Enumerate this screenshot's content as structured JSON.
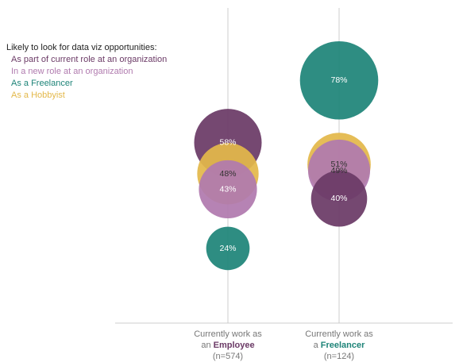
{
  "colors": {
    "current_role": "#6b3a66",
    "new_role": "#b07aae",
    "freelancer": "#1e8478",
    "hobbyist": "#e3b84a",
    "axis": "#cccccc"
  },
  "legend": {
    "title": "Likely to look for data viz opportunities:",
    "entries": [
      {
        "label": "As part of current role at an organization",
        "color": "#6b3a66"
      },
      {
        "label": "In a new role at an organization",
        "color": "#b07aae"
      },
      {
        "label": "As a Freelancer",
        "color": "#1e8478"
      },
      {
        "label": "As a Hobbyist",
        "color": "#e3b84a"
      }
    ]
  },
  "chart_data": {
    "type": "scatter",
    "title": "",
    "xlabel": "",
    "ylabel": "",
    "ylim": [
      0,
      100
    ],
    "grid": false,
    "legend_position": "top-left",
    "categories": [
      {
        "line1": "Currently work as",
        "prefix": "an ",
        "highlight": "Employee",
        "highlight_color": "#6b3a66",
        "n": "(n=574)"
      },
      {
        "line1": "Currently work as",
        "prefix": "a ",
        "highlight": "Freelancer",
        "highlight_color": "#1e8478",
        "n": "(n=124)"
      }
    ],
    "series": [
      {
        "name": "As part of current role at an organization",
        "color": "#6b3a66",
        "values": [
          58,
          40
        ],
        "labels": [
          "58%",
          "40%"
        ]
      },
      {
        "name": "In a new role at an organization",
        "color": "#b07aae",
        "values": [
          43,
          49
        ],
        "labels": [
          "43%",
          "49%"
        ]
      },
      {
        "name": "As a Freelancer",
        "color": "#1e8478",
        "values": [
          24,
          78
        ],
        "labels": [
          "24%",
          "78%"
        ]
      },
      {
        "name": "As a Hobbyist",
        "color": "#e3b84a",
        "values": [
          48,
          51
        ],
        "labels": [
          "48%",
          "51%"
        ]
      }
    ]
  }
}
